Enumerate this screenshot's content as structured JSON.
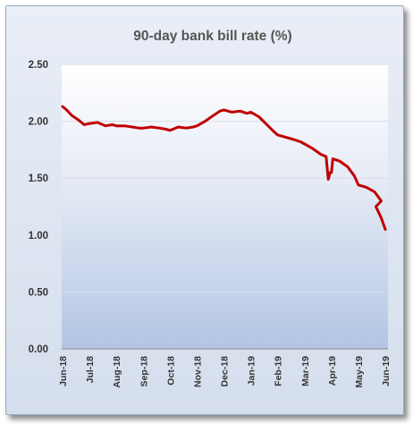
{
  "chart_data": {
    "type": "line",
    "title": "90-day bank bill rate (%)",
    "xlabel": "",
    "ylabel": "",
    "ylim": [
      0,
      2.5
    ],
    "y_ticks": [
      "0.00",
      "0.50",
      "1.00",
      "1.50",
      "2.00",
      "2.50"
    ],
    "x_ticks": [
      "Jun-18",
      "Jul-18",
      "Aug-18",
      "Sep-18",
      "Oct-18",
      "Nov-18",
      "Dec-18",
      "Jan-19",
      "Feb-19",
      "Mar-19",
      "Apr-19",
      "May-19",
      "Jun-19"
    ],
    "grid": true,
    "legend": "none",
    "series": [
      {
        "color": "#c00000",
        "points": [
          [
            "Jun-18",
            2.13
          ],
          [
            "Jun-18+0.15",
            2.1
          ],
          [
            "Jun-18+0.35",
            2.05
          ],
          [
            "Jun-18+0.6",
            2.01
          ],
          [
            "Jun-18+0.8",
            1.97
          ],
          [
            "Jul-18",
            1.98
          ],
          [
            "Jul-18+0.3",
            1.99
          ],
          [
            "Jul-18+0.6",
            1.96
          ],
          [
            "Jul-18+0.85",
            1.97
          ],
          [
            "Aug-18",
            1.96
          ],
          [
            "Aug-18+0.3",
            1.96
          ],
          [
            "Aug-18+0.6",
            1.95
          ],
          [
            "Aug-18+0.85",
            1.94
          ],
          [
            "Sep-18",
            1.94
          ],
          [
            "Sep-18+0.3",
            1.95
          ],
          [
            "Sep-18+0.6",
            1.94
          ],
          [
            "Sep-18+0.85",
            1.93
          ],
          [
            "Oct-18",
            1.92
          ],
          [
            "Oct-18+0.3",
            1.95
          ],
          [
            "Oct-18+0.6",
            1.94
          ],
          [
            "Oct-18+0.85",
            1.95
          ],
          [
            "Nov-18",
            1.96
          ],
          [
            "Nov-18+0.3",
            2.0
          ],
          [
            "Nov-18+0.6",
            2.05
          ],
          [
            "Nov-18+0.85",
            2.09
          ],
          [
            "Dec-18",
            2.1
          ],
          [
            "Dec-18+0.3",
            2.08
          ],
          [
            "Dec-18+0.6",
            2.09
          ],
          [
            "Dec-18+0.85",
            2.07
          ],
          [
            "Jan-19",
            2.08
          ],
          [
            "Jan-19+0.3",
            2.04
          ],
          [
            "Jan-19+0.6",
            1.97
          ],
          [
            "Jan-19+0.85",
            1.91
          ],
          [
            "Feb-19",
            1.88
          ],
          [
            "Feb-19+0.3",
            1.86
          ],
          [
            "Feb-19+0.6",
            1.84
          ],
          [
            "Feb-19+0.85",
            1.82
          ],
          [
            "Mar-19",
            1.8
          ],
          [
            "Mar-19+0.3",
            1.76
          ],
          [
            "Mar-19+0.6",
            1.71
          ],
          [
            "Mar-19+0.8",
            1.69
          ],
          [
            "Mar-19+0.88",
            1.49
          ],
          [
            "Mar-19+0.95",
            1.55
          ],
          [
            "Apr-19",
            1.55
          ],
          [
            "Apr-19+0.05",
            1.67
          ],
          [
            "Apr-19+0.3",
            1.65
          ],
          [
            "Apr-19+0.6",
            1.6
          ],
          [
            "Apr-19+0.85",
            1.52
          ],
          [
            "May-19",
            1.44
          ],
          [
            "May-19+0.3",
            1.42
          ],
          [
            "May-19+0.6",
            1.38
          ],
          [
            "May-19+0.85",
            1.3
          ],
          [
            "Jun-19-0.35",
            1.25
          ],
          [
            "Jun-19-0.15",
            1.15
          ],
          [
            "Jun-19",
            1.05
          ]
        ]
      }
    ]
  }
}
